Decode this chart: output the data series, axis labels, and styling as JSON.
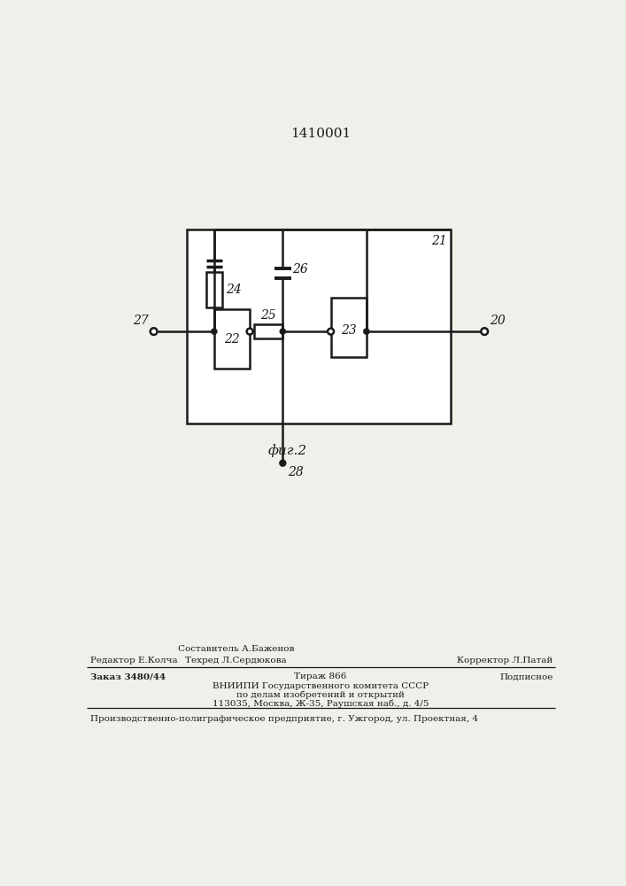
{
  "title": "1410001",
  "fig_caption": "фиг.2",
  "bg_color": "#f0f0eb",
  "line_color": "#1a1a1a",
  "text_color": "#1a1a1a",
  "footer_line1_left": "Редактор Е.Колча",
  "footer_line1_center_top": "Составитель А.Баженов",
  "footer_line1_center_bot": "Техред Л.Сердюкова",
  "footer_line1_right": "Корректор Л.Патай",
  "footer_line2_left": "Заказ 3480/44",
  "footer_line2_center": "Тираж 866",
  "footer_line2_right": "Подписное",
  "footer_line3": "ВНИИПИ Государственного комитета СССР",
  "footer_line4": "по делам изобретений и открытий",
  "footer_line5": "113035, Москва, Ж-35, Раушская наб., д. 4/5",
  "footer_last": "Производственно-полиграфическое предприятие, г. Ужгород, ул. Проектная, 4"
}
